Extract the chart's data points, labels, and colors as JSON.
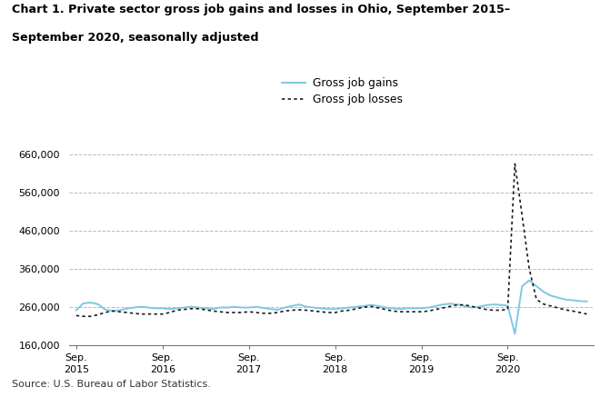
{
  "title_line1": "Chart 1. Private sector gross job gains and losses in Ohio, September 2015–",
  "title_line2": "September 2020, seasonally adjusted",
  "source": "Source: U.S. Bureau of Labor Statistics.",
  "legend_gains": "Gross job gains",
  "legend_losses": "Gross job losses",
  "gains_color": "#7ec8e3",
  "losses_color": "#1a1a1a",
  "background_color": "#ffffff",
  "grid_color": "#bbbbbb",
  "ylim": [
    160000,
    700000
  ],
  "yticks": [
    160000,
    260000,
    360000,
    460000,
    560000,
    660000
  ],
  "ytick_labels": [
    "160,000",
    "260,000",
    "360,000",
    "460,000",
    "560,000",
    "660,000"
  ],
  "x_tick_positions": [
    0,
    12,
    24,
    36,
    48,
    60
  ],
  "x_tick_labels": [
    "Sep.\n2015",
    "Sep.\n2016",
    "Sep.\n2017",
    "Sep.\n2018",
    "Sep.\n2019",
    "Sep.\n2020"
  ],
  "gross_job_gains": [
    252000,
    270000,
    272000,
    268000,
    254000,
    250000,
    252000,
    256000,
    259000,
    261000,
    259000,
    257000,
    257000,
    255000,
    257000,
    259000,
    261000,
    259000,
    257000,
    255000,
    259000,
    259000,
    261000,
    259000,
    259000,
    261000,
    258000,
    255000,
    253000,
    259000,
    263000,
    267000,
    261000,
    259000,
    257000,
    255000,
    255000,
    257000,
    259000,
    261000,
    263000,
    266000,
    263000,
    259000,
    257000,
    255000,
    257000,
    257000,
    257000,
    259000,
    263000,
    267000,
    269000,
    267000,
    263000,
    259000,
    261000,
    265000,
    267000,
    266000,
    264000,
    190000,
    315000,
    330000,
    315000,
    300000,
    290000,
    285000,
    280000,
    278000,
    276000,
    275000
  ],
  "gross_job_losses": [
    238000,
    236000,
    236000,
    240000,
    246000,
    250000,
    248000,
    246000,
    244000,
    242000,
    242000,
    242000,
    242000,
    246000,
    252000,
    254000,
    256000,
    256000,
    253000,
    250000,
    248000,
    246000,
    246000,
    246000,
    248000,
    246000,
    244000,
    244000,
    246000,
    250000,
    252000,
    253000,
    252000,
    250000,
    248000,
    246000,
    246000,
    250000,
    252000,
    256000,
    260000,
    262000,
    258000,
    254000,
    250000,
    248000,
    248000,
    248000,
    248000,
    250000,
    254000,
    258000,
    262000,
    266000,
    266000,
    262000,
    258000,
    254000,
    252000,
    252000,
    254000,
    635000,
    500000,
    360000,
    280000,
    268000,
    263000,
    258000,
    253000,
    250000,
    246000,
    242000
  ]
}
